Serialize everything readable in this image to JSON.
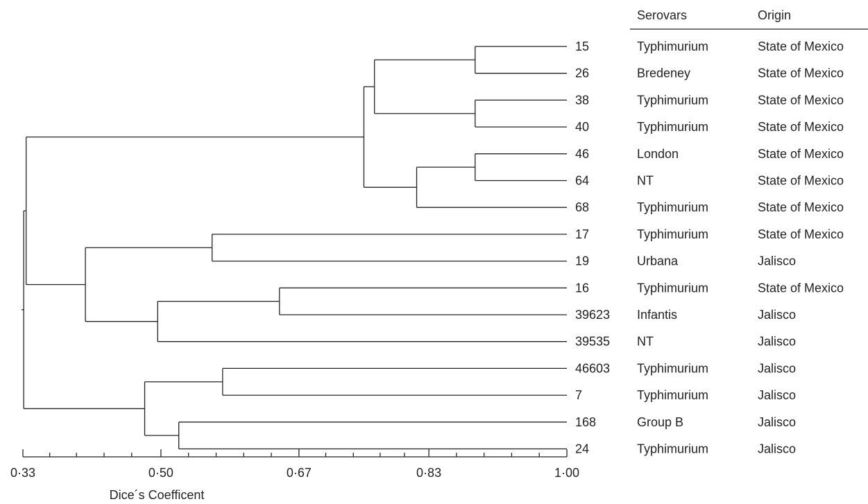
{
  "table": {
    "headers": {
      "serovar": "Serovars",
      "origin": "Origin"
    },
    "rows": [
      {
        "id": "15",
        "serovar": "Typhimurium",
        "origin": "State of Mexico"
      },
      {
        "id": "26",
        "serovar": "Bredeney",
        "origin": "State of Mexico"
      },
      {
        "id": "38",
        "serovar": "Typhimurium",
        "origin": "State of Mexico"
      },
      {
        "id": "40",
        "serovar": "Typhimurium",
        "origin": "State of Mexico"
      },
      {
        "id": "46",
        "serovar": "London",
        "origin": "State of Mexico"
      },
      {
        "id": "64",
        "serovar": "NT",
        "origin": "State of Mexico"
      },
      {
        "id": "68",
        "serovar": "Typhimurium",
        "origin": "State of Mexico"
      },
      {
        "id": "17",
        "serovar": "Typhimurium",
        "origin": "State of Mexico"
      },
      {
        "id": "19",
        "serovar": "Urbana",
        "origin": "Jalisco"
      },
      {
        "id": "16",
        "serovar": "Typhimurium",
        "origin": "State of Mexico"
      },
      {
        "id": "39623",
        "serovar": "Infantis",
        "origin": "Jalisco"
      },
      {
        "id": "39535",
        "serovar": "NT",
        "origin": "Jalisco"
      },
      {
        "id": "46603",
        "serovar": "Typhimurium",
        "origin": "Jalisco"
      },
      {
        "id": "7",
        "serovar": "Typhimurium",
        "origin": "Jalisco"
      },
      {
        "id": "168",
        "serovar": "Group B",
        "origin": "Jalisco"
      },
      {
        "id": "24",
        "serovar": "Typhimurium",
        "origin": "Jalisco"
      }
    ]
  },
  "dendrogram": {
    "nodes": [
      {
        "id": "n1",
        "children": [
          0,
          1
        ],
        "similarity": 0.887
      },
      {
        "id": "n2",
        "children": [
          2,
          3
        ],
        "similarity": 0.887
      },
      {
        "id": "n3",
        "children": [
          "n1",
          "n2"
        ],
        "similarity": 0.763
      },
      {
        "id": "n4",
        "children": [
          4,
          5
        ],
        "similarity": 0.887
      },
      {
        "id": "n5",
        "children": [
          "n4",
          6
        ],
        "similarity": 0.815
      },
      {
        "id": "n6",
        "children": [
          "n3",
          "n5"
        ],
        "similarity": 0.75
      },
      {
        "id": "n7",
        "children": [
          7,
          8
        ],
        "similarity": 0.563
      },
      {
        "id": "n8",
        "children": [
          9,
          10
        ],
        "similarity": 0.646
      },
      {
        "id": "n9",
        "children": [
          "n8",
          11
        ],
        "similarity": 0.496
      },
      {
        "id": "n10",
        "children": [
          "n7",
          "n9"
        ],
        "similarity": 0.407
      },
      {
        "id": "n11",
        "children": [
          "n6",
          "n10"
        ],
        "similarity": 0.334
      },
      {
        "id": "n12",
        "children": [
          12,
          13
        ],
        "similarity": 0.576
      },
      {
        "id": "n13",
        "children": [
          14,
          15
        ],
        "similarity": 0.522
      },
      {
        "id": "n14",
        "children": [
          "n12",
          "n13"
        ],
        "similarity": 0.48
      },
      {
        "id": "n15",
        "children": [
          "n11",
          "n14"
        ],
        "similarity": 0.331
      }
    ]
  },
  "axis": {
    "label": "Dice´s Coefficent",
    "min": 0.33,
    "max": 1.0,
    "ticks": [
      {
        "value": 0.33,
        "label": "0·33"
      },
      {
        "value": 0.5,
        "label": "0·50"
      },
      {
        "value": 0.67,
        "label": "0·67"
      },
      {
        "value": 0.83,
        "label": "0·83"
      },
      {
        "value": 1.0,
        "label": "1·00"
      }
    ],
    "minor_ticks": [
      0.363,
      0.396,
      0.43,
      0.464,
      0.534,
      0.568,
      0.602,
      0.636,
      0.703,
      0.737,
      0.77,
      0.8,
      0.864,
      0.898,
      0.932,
      0.966
    ]
  }
}
